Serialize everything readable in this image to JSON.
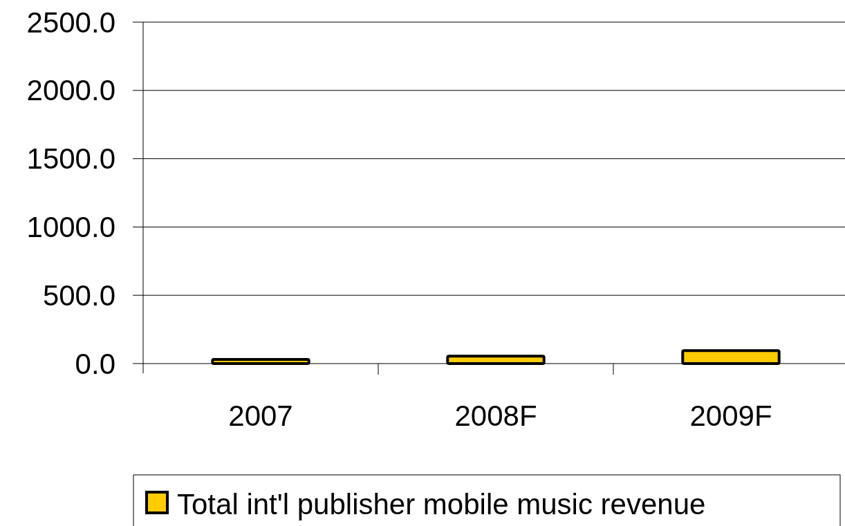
{
  "chart_data": {
    "type": "bar",
    "categories": [
      "2007",
      "2008F",
      "2009F"
    ],
    "series": [
      {
        "name": "Total int'l publisher mobile music revenue",
        "color": "#ffcc00",
        "values": [
          30,
          55,
          95
        ]
      }
    ],
    "ylim": [
      0,
      2500
    ],
    "yticks": [
      {
        "value": 0,
        "label": "0.0"
      },
      {
        "value": 500,
        "label": "500.0"
      },
      {
        "value": 1000,
        "label": "1000.0"
      },
      {
        "value": 1500,
        "label": "1500.0"
      },
      {
        "value": 2000,
        "label": "2000.0"
      },
      {
        "value": 2500,
        "label": "2500.0"
      }
    ],
    "grid": "y",
    "legend": "bottom"
  }
}
